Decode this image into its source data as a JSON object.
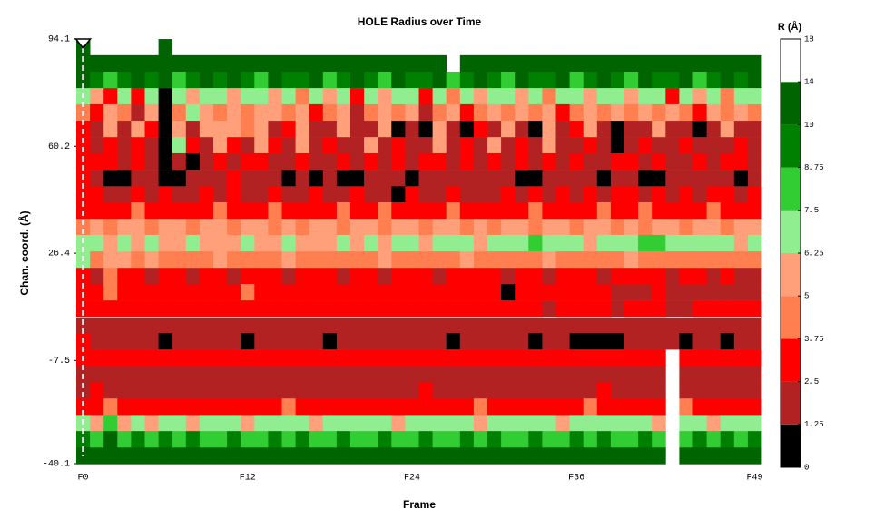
{
  "chart_data": {
    "type": "heatmap",
    "title": "HOLE Radius over Time",
    "x_label": "Frame",
    "y_label": "Chan. coord. (Å)",
    "categories": [
      "F0",
      null,
      null,
      null,
      null,
      null,
      null,
      null,
      null,
      null,
      null,
      null,
      "F12",
      null,
      null,
      null,
      null,
      null,
      null,
      null,
      null,
      null,
      null,
      null,
      "F24",
      null,
      null,
      null,
      null,
      null,
      null,
      null,
      null,
      null,
      null,
      null,
      "F36",
      null,
      null,
      null,
      null,
      null,
      null,
      null,
      null,
      null,
      null,
      null,
      null,
      "F49"
    ],
    "ylim": [
      -40.1,
      94.1
    ],
    "yticks": [
      94.1,
      60.2,
      26.4,
      -7.5,
      -40.1
    ],
    "y": [
      91.5,
      86.4,
      81.2,
      76.0,
      70.9,
      65.7,
      60.5,
      55.4,
      50.2,
      45.0,
      39.9,
      34.7,
      29.6,
      24.4,
      19.2,
      14.1,
      8.9,
      3.7,
      -1.4,
      -6.6,
      -11.8,
      -16.9,
      -22.1,
      -27.3,
      -32.4,
      -37.6
    ],
    "z": [
      [
        12,
        null,
        null,
        null,
        null,
        null,
        12,
        null,
        null,
        null,
        null,
        null,
        null,
        null,
        null,
        null,
        null,
        null,
        null,
        null,
        null,
        null,
        null,
        null,
        null,
        null,
        null,
        null,
        null,
        null,
        null,
        null,
        null,
        null,
        null,
        null,
        null,
        null,
        null,
        null,
        null,
        null,
        null,
        null,
        null,
        null,
        null,
        null,
        null,
        null
      ],
      [
        12,
        12,
        12,
        12,
        12,
        12,
        12,
        12,
        12,
        12,
        12,
        12,
        12,
        12,
        12,
        12,
        12,
        12,
        12,
        12,
        12,
        12,
        12,
        12,
        12,
        12,
        12,
        null,
        12,
        12,
        12,
        12,
        12,
        12,
        12,
        12,
        12,
        12,
        12,
        12,
        12,
        12,
        12,
        12,
        12,
        12,
        12,
        12,
        12,
        12
      ],
      [
        12,
        9,
        8,
        9,
        12,
        9,
        12,
        8,
        9,
        12,
        9,
        12,
        9,
        8,
        12,
        9,
        9,
        12,
        8,
        9,
        12,
        9,
        8,
        12,
        9,
        9,
        12,
        8,
        9,
        12,
        9,
        8,
        12,
        9,
        9,
        12,
        8,
        9,
        12,
        9,
        8,
        12,
        9,
        9,
        12,
        8,
        9,
        12,
        9,
        12
      ],
      [
        7,
        5.5,
        3,
        7,
        3,
        7,
        0.8,
        7,
        5.5,
        7,
        7,
        5.5,
        7,
        7,
        5.5,
        7,
        4.5,
        7,
        5.5,
        7,
        3,
        7,
        5.5,
        7,
        7,
        3,
        7,
        4.5,
        7,
        5.5,
        7,
        7,
        5.5,
        7,
        4.5,
        7,
        7,
        5.5,
        7,
        7,
        5.5,
        7,
        7,
        3,
        7,
        5.5,
        7,
        4.5,
        7,
        7
      ],
      [
        4.5,
        3,
        5.5,
        4.5,
        2,
        5.5,
        0.8,
        4.5,
        7,
        5.5,
        4.5,
        5.5,
        4.5,
        5.5,
        5.5,
        4.5,
        5.5,
        3,
        4.5,
        5.5,
        2,
        4.5,
        5.5,
        4.5,
        5.5,
        2,
        4.5,
        5.5,
        3,
        4.5,
        5.5,
        4.5,
        5.5,
        4.5,
        5.5,
        3,
        4.5,
        5.5,
        4.5,
        5.5,
        4.5,
        5.5,
        4.5,
        5.5,
        4.5,
        3,
        5.5,
        4.5,
        5.5,
        4.5
      ],
      [
        3,
        2,
        5.5,
        2,
        5.5,
        3,
        0.8,
        5.5,
        2,
        5.5,
        5.5,
        5.5,
        4.5,
        5.5,
        2,
        3,
        5.5,
        2,
        2,
        5.5,
        2,
        2,
        5.5,
        0.8,
        2,
        0.8,
        5.5,
        2,
        0.8,
        3,
        2,
        5.5,
        2,
        0.8,
        5.5,
        2,
        3,
        5.5,
        2,
        0.8,
        2,
        2,
        5.5,
        2,
        2,
        0.8,
        2,
        5.5,
        2,
        2
      ],
      [
        3,
        2,
        3,
        2,
        3,
        2,
        0.8,
        7,
        3,
        2,
        5.5,
        3,
        2,
        5.5,
        3,
        2,
        5.5,
        2,
        3,
        2,
        2,
        5.5,
        2,
        3,
        2,
        2,
        5.5,
        2,
        3,
        2,
        5.5,
        2,
        3,
        2,
        5.5,
        2,
        2,
        3,
        2,
        0.8,
        2,
        3,
        2,
        2,
        3,
        2,
        2,
        2,
        3,
        2
      ],
      [
        3,
        3,
        3,
        2,
        3,
        2,
        0.8,
        2,
        0.8,
        2,
        3,
        2,
        3,
        3,
        2,
        2,
        3,
        2,
        2,
        3,
        2,
        3,
        2,
        3,
        2,
        3,
        3,
        2,
        3,
        2,
        3,
        2,
        3,
        2,
        3,
        2,
        3,
        2,
        2,
        3,
        3,
        2,
        3,
        2,
        2,
        3,
        2,
        3,
        3,
        2
      ],
      [
        3,
        2,
        0.8,
        0.8,
        2,
        2,
        0.8,
        0.8,
        2,
        2,
        2,
        3,
        2,
        2,
        2,
        0.8,
        2,
        0.8,
        2,
        0.8,
        0.8,
        2,
        2,
        2,
        0.8,
        2,
        2,
        2,
        2,
        2,
        2,
        2,
        0.8,
        0.8,
        2,
        2,
        2,
        2,
        0.8,
        2,
        2,
        0.8,
        0.8,
        2,
        2,
        2,
        2,
        2,
        0.8,
        2
      ],
      [
        3,
        3,
        2,
        2,
        3,
        2,
        3,
        2,
        2,
        3,
        2,
        3,
        2,
        2,
        3,
        2,
        2,
        3,
        2,
        2,
        3,
        2,
        2,
        0.8,
        3,
        2,
        2,
        3,
        2,
        2,
        2,
        3,
        2,
        3,
        2,
        3,
        2,
        3,
        2,
        3,
        3,
        2,
        3,
        2,
        3,
        2,
        3,
        3,
        2,
        3
      ],
      [
        3,
        3,
        3,
        3,
        4.5,
        3,
        3,
        3,
        3,
        3,
        4.5,
        3,
        3,
        3,
        4.5,
        3,
        3,
        3,
        3,
        4.5,
        3,
        3,
        4.5,
        3,
        3,
        3,
        3,
        4.5,
        3,
        3,
        3,
        3,
        3,
        4.5,
        3,
        3,
        3,
        3,
        4.5,
        3,
        3,
        4.5,
        3,
        3,
        3,
        3,
        4.5,
        3,
        3,
        3
      ],
      [
        4.5,
        5.5,
        4.5,
        5.5,
        5.5,
        4.5,
        5.5,
        5.5,
        4.5,
        5.5,
        5.5,
        4.5,
        5.5,
        5.5,
        4.5,
        5.5,
        4.5,
        5.5,
        5.5,
        4.5,
        5.5,
        5.5,
        4.5,
        5.5,
        5.5,
        4.5,
        5.5,
        5.5,
        4.5,
        5.5,
        4.5,
        5.5,
        5.5,
        4.5,
        5.5,
        5.5,
        4.5,
        5.5,
        5.5,
        4.5,
        5.5,
        4.5,
        5.5,
        5.5,
        4.5,
        5.5,
        5.5,
        4.5,
        5.5,
        5.5
      ],
      [
        7,
        7,
        5.5,
        7,
        5.5,
        7,
        5.5,
        5.5,
        7,
        5.5,
        5.5,
        5.5,
        7,
        5.5,
        5.5,
        7,
        5.5,
        5.5,
        5.5,
        7,
        5.5,
        7,
        5.5,
        7,
        7,
        5.5,
        7,
        7,
        7,
        5.5,
        7,
        7,
        7,
        8,
        7,
        7,
        7,
        5.5,
        7,
        7,
        7,
        8,
        8,
        7,
        7,
        7,
        7,
        7,
        5.5,
        7
      ],
      [
        7,
        4.5,
        5.5,
        5.5,
        4.5,
        5.5,
        4.5,
        4.5,
        4.5,
        4.5,
        5.5,
        4.5,
        4.5,
        4.5,
        4.5,
        5.5,
        4.5,
        4.5,
        4.5,
        4.5,
        4.5,
        4.5,
        5.5,
        4.5,
        4.5,
        4.5,
        4.5,
        4.5,
        5.5,
        4.5,
        4.5,
        4.5,
        4.5,
        4.5,
        5.5,
        4.5,
        4.5,
        4.5,
        4.5,
        4.5,
        5.5,
        4.5,
        4.5,
        4.5,
        4.5,
        4.5,
        4.5,
        4.5,
        4.5,
        4.5
      ],
      [
        3,
        2,
        4.5,
        3,
        3,
        2,
        3,
        3,
        2,
        3,
        3,
        2,
        3,
        3,
        3,
        2,
        3,
        3,
        3,
        2,
        3,
        3,
        2,
        3,
        3,
        3,
        2,
        3,
        3,
        3,
        3,
        2,
        3,
        3,
        2,
        3,
        3,
        3,
        2,
        3,
        3,
        3,
        3,
        2,
        3,
        3,
        2,
        3,
        2,
        2
      ],
      [
        3,
        3,
        4.5,
        3,
        3,
        3,
        3,
        3,
        3,
        3,
        3,
        3,
        4.5,
        3,
        3,
        3,
        3,
        3,
        3,
        3,
        3,
        3,
        3,
        3,
        3,
        3,
        3,
        3,
        3,
        3,
        3,
        0.8,
        3,
        3,
        3,
        3,
        3,
        3,
        3,
        2,
        2,
        2,
        3,
        2,
        2,
        2,
        2,
        2,
        2,
        2
      ],
      [
        3,
        3,
        3,
        3,
        3,
        3,
        3,
        3,
        3,
        3,
        3,
        3,
        3,
        3,
        3,
        3,
        3,
        3,
        3,
        3,
        3,
        3,
        3,
        3,
        3,
        3,
        3,
        3,
        3,
        3,
        3,
        3,
        3,
        3,
        2,
        3,
        3,
        3,
        3,
        2,
        3,
        3,
        3,
        2,
        2,
        3,
        3,
        3,
        3,
        3
      ],
      [
        2,
        2,
        2,
        2,
        2,
        2,
        2,
        2,
        2,
        2,
        2,
        2,
        2,
        2,
        2,
        2,
        2,
        2,
        2,
        2,
        2,
        2,
        2,
        2,
        2,
        2,
        2,
        2,
        2,
        2,
        2,
        2,
        2,
        2,
        2,
        2,
        2,
        2,
        2,
        2,
        2,
        2,
        2,
        2,
        2,
        2,
        2,
        2,
        2,
        2
      ],
      [
        3,
        2,
        2,
        2,
        2,
        2,
        0.8,
        2,
        2,
        2,
        2,
        2,
        0.8,
        2,
        2,
        2,
        2,
        2,
        0.8,
        2,
        2,
        2,
        2,
        2,
        2,
        2,
        2,
        0.8,
        2,
        2,
        2,
        2,
        2,
        0.8,
        2,
        2,
        0.8,
        0.8,
        0.8,
        0.8,
        2,
        2,
        2,
        2,
        0.8,
        2,
        2,
        0.8,
        2,
        2
      ],
      [
        3,
        3,
        3,
        3,
        3,
        3,
        3,
        3,
        3,
        3,
        3,
        3,
        3,
        3,
        3,
        3,
        3,
        3,
        3,
        3,
        3,
        3,
        3,
        3,
        3,
        3,
        3,
        3,
        3,
        3,
        3,
        3,
        3,
        3,
        3,
        3,
        3,
        3,
        3,
        3,
        3,
        3,
        3,
        null,
        3,
        3,
        3,
        3,
        3,
        3
      ],
      [
        2,
        2,
        2,
        2,
        2,
        2,
        2,
        2,
        2,
        2,
        2,
        2,
        2,
        2,
        2,
        2,
        2,
        2,
        2,
        2,
        2,
        2,
        2,
        2,
        2,
        2,
        2,
        2,
        2,
        2,
        2,
        2,
        2,
        2,
        2,
        2,
        2,
        2,
        2,
        2,
        2,
        2,
        2,
        null,
        2,
        2,
        2,
        2,
        2,
        2
      ],
      [
        2,
        3,
        2,
        2,
        2,
        2,
        2,
        2,
        2,
        2,
        2,
        2,
        2,
        2,
        2,
        2,
        2,
        2,
        2,
        2,
        2,
        2,
        2,
        2,
        2,
        3,
        2,
        2,
        2,
        2,
        2,
        2,
        2,
        2,
        2,
        2,
        2,
        2,
        3,
        2,
        2,
        2,
        2,
        null,
        2,
        2,
        2,
        2,
        2,
        2
      ],
      [
        3,
        3,
        4.5,
        3,
        3,
        3,
        3,
        3,
        3,
        3,
        3,
        3,
        3,
        3,
        3,
        4.5,
        3,
        3,
        3,
        3,
        3,
        3,
        3,
        3,
        3,
        3,
        3,
        3,
        3,
        4.5,
        3,
        3,
        3,
        3,
        3,
        3,
        3,
        4.5,
        3,
        3,
        3,
        3,
        3,
        null,
        4.5,
        3,
        3,
        3,
        3,
        3
      ],
      [
        7,
        5.5,
        8,
        5.5,
        7,
        5.5,
        7,
        7,
        5.5,
        7,
        7,
        7,
        5.5,
        7,
        7,
        7,
        7,
        5.5,
        7,
        7,
        7,
        7,
        7,
        5.5,
        7,
        7,
        7,
        7,
        7,
        5.5,
        7,
        7,
        7,
        7,
        7,
        5.5,
        7,
        7,
        7,
        7,
        7,
        7,
        5.5,
        null,
        7,
        7,
        5.5,
        7,
        7,
        7
      ],
      [
        9,
        8,
        12,
        8,
        9,
        8,
        9,
        8,
        9,
        8,
        8,
        9,
        8,
        8,
        9,
        8,
        9,
        8,
        8,
        9,
        8,
        8,
        9,
        8,
        8,
        9,
        8,
        8,
        9,
        8,
        9,
        8,
        8,
        9,
        8,
        8,
        9,
        8,
        9,
        8,
        8,
        9,
        8,
        null,
        8,
        9,
        8,
        9,
        8,
        9
      ],
      [
        12,
        12,
        12,
        12,
        12,
        12,
        12,
        12,
        12,
        12,
        12,
        12,
        12,
        12,
        12,
        12,
        12,
        12,
        12,
        12,
        12,
        12,
        12,
        12,
        12,
        12,
        12,
        12,
        12,
        12,
        12,
        12,
        12,
        12,
        12,
        12,
        12,
        12,
        12,
        12,
        12,
        12,
        12,
        null,
        12,
        12,
        12,
        12,
        12,
        12
      ]
    ],
    "colorbar": {
      "label": "R (Å)",
      "ticks": [
        0,
        1.25,
        2.5,
        3.75,
        5,
        6.25,
        7.5,
        8.75,
        10,
        14,
        18
      ],
      "colors": [
        "#000000",
        "#b22222",
        "#ff0000",
        "#ff7f50",
        "#ffa07a",
        "#90ee90",
        "#32cd32",
        "#008000",
        "#006400",
        "#ffffff"
      ]
    }
  }
}
